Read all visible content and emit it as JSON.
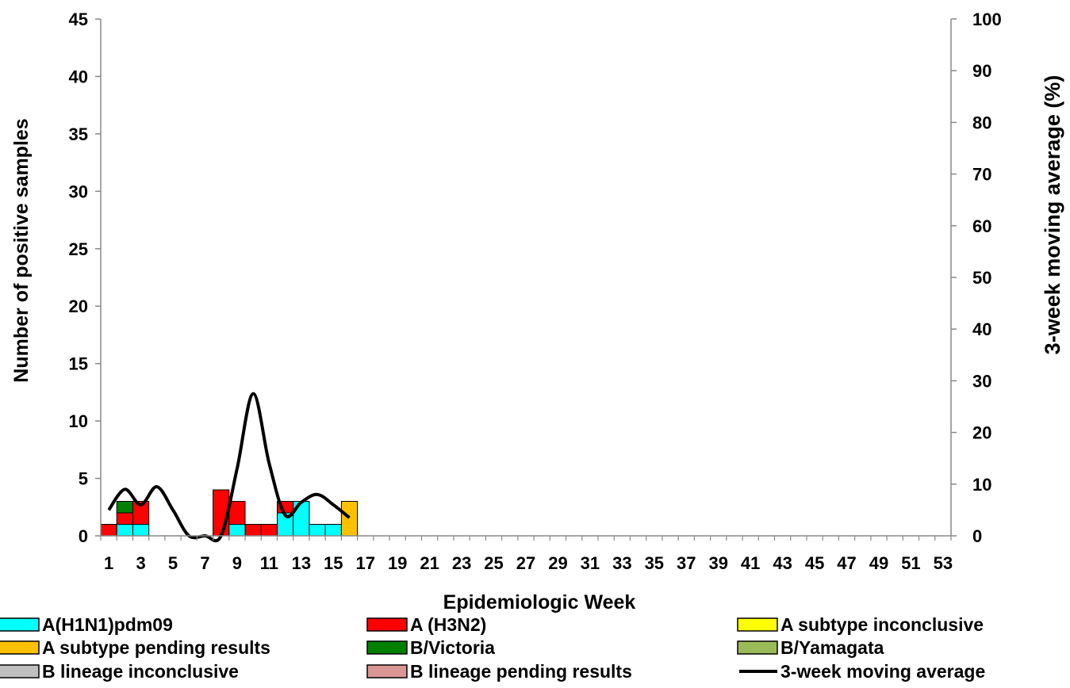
{
  "chart_data": {
    "type": "bar",
    "stacked": true,
    "xlabel": "Epidemiologic Week",
    "ylabel": "Number of positive samples",
    "ylabel_right": "3-week moving average (%)",
    "ylim": [
      0,
      45
    ],
    "ylim_right": [
      0,
      100
    ],
    "yticks": [
      0,
      5,
      10,
      15,
      20,
      25,
      30,
      35,
      40,
      45
    ],
    "yticks_right": [
      0,
      10,
      20,
      30,
      40,
      50,
      60,
      70,
      80,
      90,
      100
    ],
    "grid": false,
    "legend_position": "bottom",
    "x": [
      1,
      2,
      3,
      4,
      5,
      6,
      7,
      8,
      9,
      10,
      11,
      12,
      13,
      14,
      15,
      16,
      17,
      18,
      19,
      20,
      21,
      22,
      23,
      24,
      25,
      26,
      27,
      28,
      29,
      30,
      31,
      32,
      33,
      34,
      35,
      36,
      37,
      38,
      39,
      40,
      41,
      42,
      43,
      44,
      45,
      46,
      47,
      48,
      49,
      50,
      51,
      52,
      53
    ],
    "x_tick_labels": [
      "1",
      "3",
      "5",
      "7",
      "9",
      "11",
      "13",
      "15",
      "17",
      "19",
      "21",
      "23",
      "25",
      "27",
      "29",
      "31",
      "33",
      "35",
      "37",
      "39",
      "41",
      "43",
      "45",
      "47",
      "49",
      "51",
      "53"
    ],
    "series": [
      {
        "name": "A(H1N1)pdm09",
        "color": "#00FFFF",
        "values": [
          0,
          1,
          1,
          0,
          0,
          0,
          0,
          0,
          1,
          0,
          0,
          2,
          3,
          1,
          1,
          0,
          0,
          0,
          0,
          0,
          0,
          0,
          0,
          0,
          0,
          0,
          0,
          0,
          0,
          0,
          0,
          0,
          0,
          0,
          0,
          0,
          0,
          0,
          0,
          0,
          0,
          0,
          0,
          0,
          0,
          0,
          0,
          0,
          0,
          0,
          0,
          0,
          0
        ]
      },
      {
        "name": "A (H3N2)",
        "color": "#FF0000",
        "values": [
          1,
          1,
          2,
          0,
          0,
          0,
          0,
          4,
          2,
          1,
          1,
          1,
          0,
          0,
          0,
          0,
          0,
          0,
          0,
          0,
          0,
          0,
          0,
          0,
          0,
          0,
          0,
          0,
          0,
          0,
          0,
          0,
          0,
          0,
          0,
          0,
          0,
          0,
          0,
          0,
          0,
          0,
          0,
          0,
          0,
          0,
          0,
          0,
          0,
          0,
          0,
          0,
          0
        ]
      },
      {
        "name": "A subtype inconclusive",
        "color": "#FFFF00",
        "values": [
          0,
          0,
          0,
          0,
          0,
          0,
          0,
          0,
          0,
          0,
          0,
          0,
          0,
          0,
          0,
          0,
          0,
          0,
          0,
          0,
          0,
          0,
          0,
          0,
          0,
          0,
          0,
          0,
          0,
          0,
          0,
          0,
          0,
          0,
          0,
          0,
          0,
          0,
          0,
          0,
          0,
          0,
          0,
          0,
          0,
          0,
          0,
          0,
          0,
          0,
          0,
          0,
          0
        ]
      },
      {
        "name": "A subtype pending results",
        "color": "#FFC000",
        "values": [
          0,
          0,
          0,
          0,
          0,
          0,
          0,
          0,
          0,
          0,
          0,
          0,
          0,
          0,
          0,
          3,
          0,
          0,
          0,
          0,
          0,
          0,
          0,
          0,
          0,
          0,
          0,
          0,
          0,
          0,
          0,
          0,
          0,
          0,
          0,
          0,
          0,
          0,
          0,
          0,
          0,
          0,
          0,
          0,
          0,
          0,
          0,
          0,
          0,
          0,
          0,
          0,
          0
        ]
      },
      {
        "name": "B/Victoria",
        "color": "#008000",
        "values": [
          0,
          1,
          0,
          0,
          0,
          0,
          0,
          0,
          0,
          0,
          0,
          0,
          0,
          0,
          0,
          0,
          0,
          0,
          0,
          0,
          0,
          0,
          0,
          0,
          0,
          0,
          0,
          0,
          0,
          0,
          0,
          0,
          0,
          0,
          0,
          0,
          0,
          0,
          0,
          0,
          0,
          0,
          0,
          0,
          0,
          0,
          0,
          0,
          0,
          0,
          0,
          0,
          0
        ]
      },
      {
        "name": "B/Yamagata",
        "color": "#9BBB59",
        "values": [
          0,
          0,
          0,
          0,
          0,
          0,
          0,
          0,
          0,
          0,
          0,
          0,
          0,
          0,
          0,
          0,
          0,
          0,
          0,
          0,
          0,
          0,
          0,
          0,
          0,
          0,
          0,
          0,
          0,
          0,
          0,
          0,
          0,
          0,
          0,
          0,
          0,
          0,
          0,
          0,
          0,
          0,
          0,
          0,
          0,
          0,
          0,
          0,
          0,
          0,
          0,
          0,
          0
        ]
      },
      {
        "name": "B lineage inconclusive",
        "color": "#BFBFBF",
        "values": [
          0,
          0,
          0,
          0,
          0,
          0,
          0,
          0,
          0,
          0,
          0,
          0,
          0,
          0,
          0,
          0,
          0,
          0,
          0,
          0,
          0,
          0,
          0,
          0,
          0,
          0,
          0,
          0,
          0,
          0,
          0,
          0,
          0,
          0,
          0,
          0,
          0,
          0,
          0,
          0,
          0,
          0,
          0,
          0,
          0,
          0,
          0,
          0,
          0,
          0,
          0,
          0,
          0
        ]
      },
      {
        "name": "B lineage pending results",
        "color": "#D99694",
        "values": [
          0,
          0,
          0,
          0,
          0,
          0,
          0,
          0,
          0,
          0,
          0,
          0,
          0,
          0,
          0,
          0,
          0,
          0,
          0,
          0,
          0,
          0,
          0,
          0,
          0,
          0,
          0,
          0,
          0,
          0,
          0,
          0,
          0,
          0,
          0,
          0,
          0,
          0,
          0,
          0,
          0,
          0,
          0,
          0,
          0,
          0,
          0,
          0,
          0,
          0,
          0,
          0,
          0
        ]
      }
    ],
    "line_series": {
      "name": "3-week moving average",
      "color": "#000000",
      "axis": "right",
      "x": [
        1,
        2,
        3,
        4,
        5,
        6,
        7,
        8,
        9,
        10,
        11,
        12,
        13,
        14,
        15,
        16
      ],
      "values": [
        5,
        9,
        6,
        9.5,
        5,
        0,
        0,
        0,
        13,
        27.5,
        14,
        4,
        6.5,
        8,
        6,
        3.5
      ]
    },
    "legend": [
      {
        "label": "A(H1N1)pdm09",
        "kind": "box",
        "color": "#00FFFF"
      },
      {
        "label": "A (H3N2)",
        "kind": "box",
        "color": "#FF0000"
      },
      {
        "label": "A subtype inconclusive",
        "kind": "box",
        "color": "#FFFF00"
      },
      {
        "label": "A subtype pending results",
        "kind": "box",
        "color": "#FFC000"
      },
      {
        "label": "B/Victoria",
        "kind": "box",
        "color": "#008000"
      },
      {
        "label": "B/Yamagata",
        "kind": "box",
        "color": "#9BBB59"
      },
      {
        "label": "B lineage inconclusive",
        "kind": "box",
        "color": "#BFBFBF"
      },
      {
        "label": "B lineage pending results",
        "kind": "box",
        "color": "#D99694"
      },
      {
        "label": "3-week moving average",
        "kind": "line",
        "color": "#000000"
      }
    ]
  }
}
